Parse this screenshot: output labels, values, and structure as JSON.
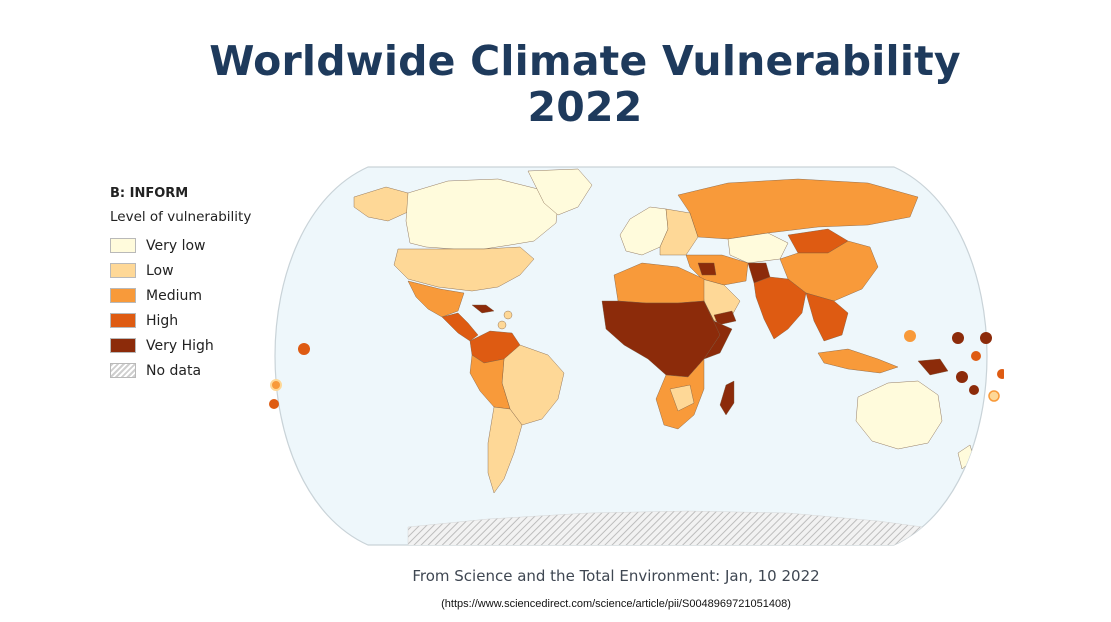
{
  "title": {
    "line1": "Worldwide Climate Vulnerability",
    "line2": "2022"
  },
  "legend": {
    "heading": "B: INFORM",
    "subheading": "Level of vulnerability",
    "items": [
      {
        "label": "Very low",
        "color": "#fffbdc"
      },
      {
        "label": "Low",
        "color": "#fed897"
      },
      {
        "label": "Medium",
        "color": "#f89a3a"
      },
      {
        "label": "High",
        "color": "#de5b12"
      },
      {
        "label": "Very High",
        "color": "#8c2b0a"
      },
      {
        "label": "No data",
        "color": "hatched-grey"
      }
    ]
  },
  "map": {
    "projection": "robinson",
    "ocean_color": "#eef7fb",
    "regions": [
      {
        "region": "North America (USA)",
        "level": "Low"
      },
      {
        "region": "Canada",
        "level": "Very low"
      },
      {
        "region": "Alaska",
        "level": "Low"
      },
      {
        "region": "Greenland",
        "level": "Very low"
      },
      {
        "region": "Mexico",
        "level": "Medium"
      },
      {
        "region": "Central America",
        "level": "High"
      },
      {
        "region": "Caribbean (Haiti)",
        "level": "Very High"
      },
      {
        "region": "Colombia / Venezuela",
        "level": "High"
      },
      {
        "region": "Brazil",
        "level": "Low"
      },
      {
        "region": "Peru / Bolivia",
        "level": "Medium"
      },
      {
        "region": "Argentina / Chile",
        "level": "Low"
      },
      {
        "region": "Western Europe",
        "level": "Very low"
      },
      {
        "region": "Eastern Europe",
        "level": "Low"
      },
      {
        "region": "Russia",
        "level": "Medium"
      },
      {
        "region": "North Africa",
        "level": "Medium"
      },
      {
        "region": "Sahel / Central Africa",
        "level": "Very High"
      },
      {
        "region": "East Africa",
        "level": "Very High"
      },
      {
        "region": "Southern Africa",
        "level": "Medium"
      },
      {
        "region": "Madagascar",
        "level": "Very High"
      },
      {
        "region": "Middle East",
        "level": "Medium"
      },
      {
        "region": "Arabian Peninsula",
        "level": "Low"
      },
      {
        "region": "Yemen / Syria",
        "level": "Very High"
      },
      {
        "region": "Afghanistan",
        "level": "Very High"
      },
      {
        "region": "South Asia",
        "level": "High"
      },
      {
        "region": "Kazakhstan",
        "level": "Very low"
      },
      {
        "region": "Mongolia",
        "level": "High"
      },
      {
        "region": "China",
        "level": "Medium"
      },
      {
        "region": "Southeast Asia",
        "level": "High"
      },
      {
        "region": "Indonesia",
        "level": "Medium"
      },
      {
        "region": "Papua New Guinea",
        "level": "Very High"
      },
      {
        "region": "Australia",
        "level": "Very low"
      },
      {
        "region": "New Zealand",
        "level": "Very low"
      },
      {
        "region": "Antarctica",
        "level": "No data"
      }
    ]
  },
  "source": {
    "text": "From Science and the Total Environment: Jan, 10 2022",
    "url": "(https://www.sciencedirect.com/science/article/pii/S0048969721051408)"
  }
}
